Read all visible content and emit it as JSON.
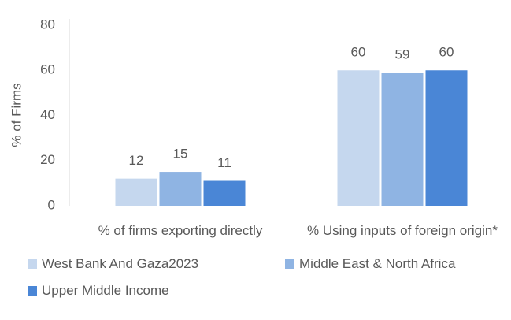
{
  "chart_data": {
    "type": "bar",
    "ylabel": "% of Firms",
    "categories": [
      "% of firms exporting directly",
      "% Using inputs of foreign origin*"
    ],
    "series": [
      {
        "name": "West Bank And Gaza2023",
        "color": "#c5d7ee",
        "values": [
          12,
          60
        ]
      },
      {
        "name": "Middle East & North Africa",
        "color": "#8fb4e3",
        "values": [
          15,
          59
        ]
      },
      {
        "name": "Upper Middle Income",
        "color": "#4a86d6",
        "values": [
          11,
          60
        ]
      }
    ],
    "ylim": [
      0,
      80
    ],
    "yticks": [
      0,
      20,
      40,
      60,
      80
    ],
    "grid": false
  }
}
